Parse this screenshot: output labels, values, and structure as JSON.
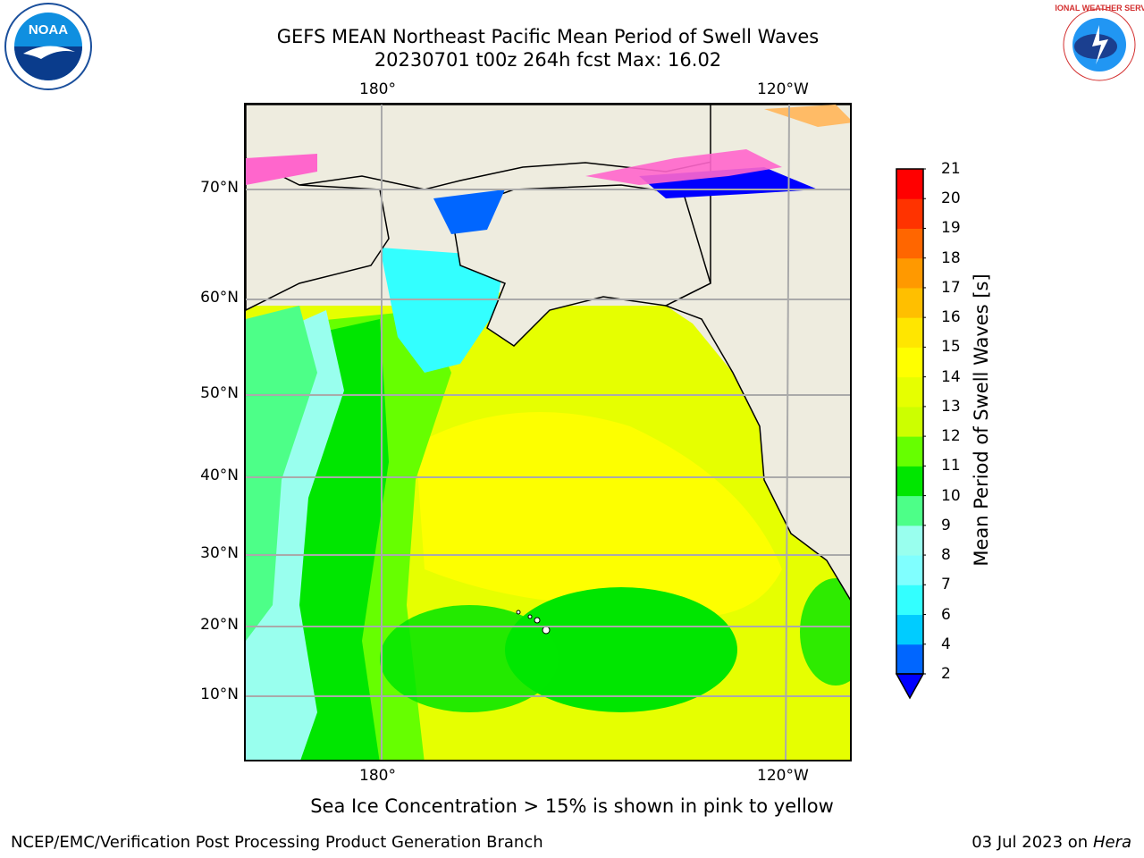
{
  "title_line1": "GEFS MEAN Northeast Pacific Mean Period of Swell Waves",
  "title_line2": "20230701 t00z 264h fcst   Max: 16.02",
  "longitude_labels": [
    "180°",
    "120°W"
  ],
  "latitude_labels": [
    "70°N",
    "60°N",
    "50°N",
    "40°N",
    "30°N",
    "20°N",
    "10°N"
  ],
  "colorbar": {
    "title": "Mean Period of Swell Waves [s]",
    "ticks": [
      "2",
      "4",
      "6",
      "7",
      "8",
      "9",
      "10",
      "11",
      "12",
      "13",
      "14",
      "15",
      "16",
      "17",
      "18",
      "19",
      "20",
      "21"
    ],
    "colors": [
      "#0066ff",
      "#00ccff",
      "#33ffff",
      "#80ffff",
      "#99ffee",
      "#4dff88",
      "#00e600",
      "#66ff00",
      "#ccff00",
      "#e6ff00",
      "#ffff00",
      "#ffe600",
      "#ffbf00",
      "#ff9900",
      "#ff6600",
      "#ff3300",
      "#ff0000"
    ],
    "under_color": "#0000ff"
  },
  "footnote": "Sea Ice Concentration > 15% is shown in pink to yellow",
  "credit": "NCEP/EMC/Verification Post Processing Product Generation Branch",
  "date_text": "03 Jul 2023 on ",
  "host": "Hera",
  "logos": {
    "left": "NOAA",
    "right": "NATIONAL WEATHER SERVICE"
  }
}
